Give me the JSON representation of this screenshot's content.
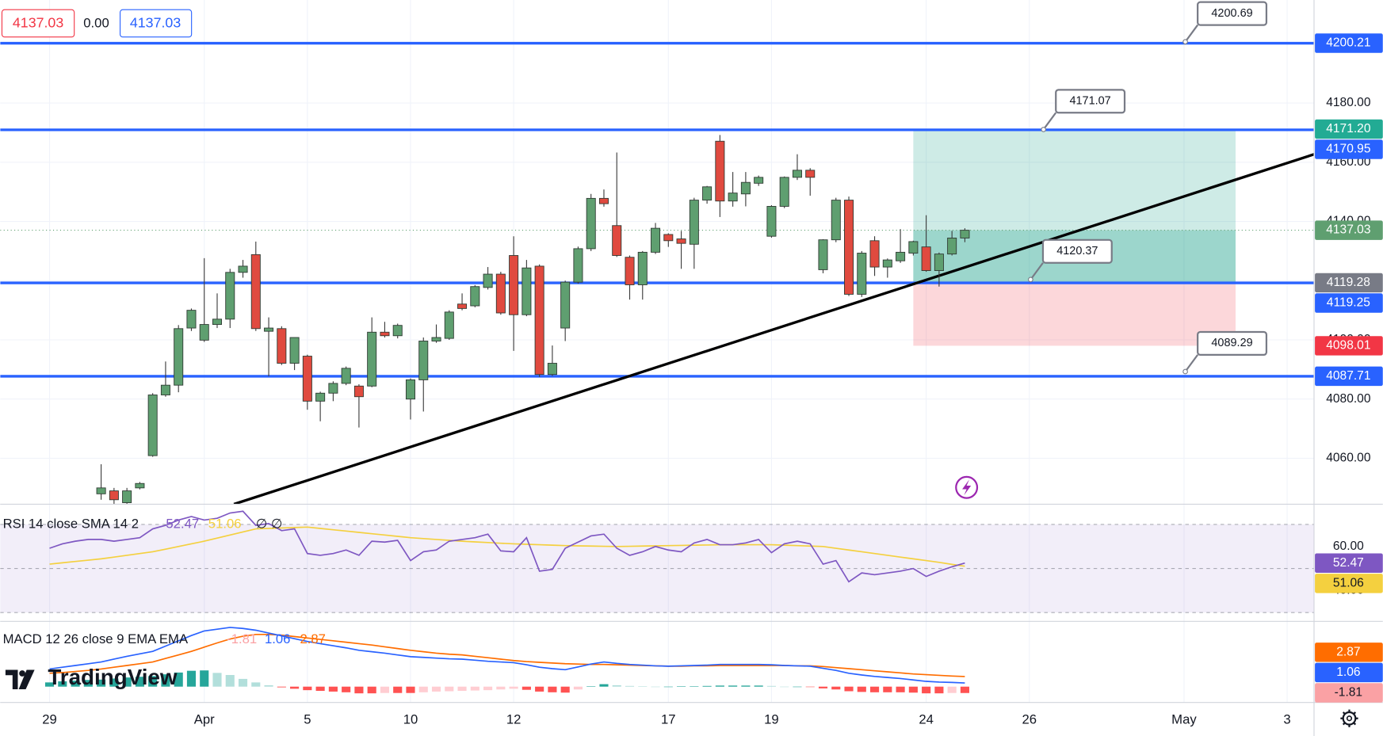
{
  "header": {
    "bid": 4137.03,
    "spread": {
      "value": 0,
      "label": "0.00"
    },
    "ask": 4137.03
  },
  "logo": "TradingView",
  "chart_data": {
    "type": "candlestick",
    "categories": [
      "29",
      null,
      null,
      null,
      null,
      null,
      null,
      null,
      null,
      null,
      null,
      null,
      "Apr",
      null,
      null,
      null,
      null,
      null,
      null,
      null,
      "5",
      null,
      null,
      null,
      null,
      null,
      null,
      null,
      "10",
      null,
      null,
      null,
      null,
      null,
      null,
      null,
      "12",
      null,
      null,
      null,
      null,
      null,
      null,
      null,
      null,
      null,
      null,
      null,
      "17",
      null,
      null,
      null,
      null,
      null,
      null,
      null,
      "19",
      null,
      null,
      null,
      null,
      null,
      null,
      null,
      null,
      null,
      null,
      null,
      "24",
      null,
      null,
      null,
      null,
      null,
      null,
      null,
      "26",
      null,
      null,
      null,
      null,
      null,
      null,
      null,
      null,
      null,
      null,
      null,
      "May",
      null,
      null,
      null,
      null,
      null,
      null,
      null,
      "3"
    ],
    "open": [
      null,
      null,
      null,
      null,
      4048,
      4049,
      4045,
      4050,
      4060.9,
      4081.4,
      4084.7,
      4104,
      4099.9,
      4105.2,
      4107,
      4122.8,
      4128.8,
      4102.9,
      4103.8,
      4092.1,
      4094.5,
      4079.3,
      4082,
      4085.3,
      4084.4,
      4084.4,
      4102.6,
      4101.4,
      4080,
      4086.5,
      4099.6,
      4100.5,
      4112.1,
      4111.5,
      4117.7,
      4122.2,
      4128.5,
      4108.5,
      4124.9,
      4088.3,
      4104,
      4119.5,
      4130.8,
      4147.8,
      4138.6,
      4127.9,
      4118.6,
      4129.6,
      4135.6,
      4134.1,
      4132.3,
      4147.2,
      4167.1,
      4146.9,
      4149.3,
      4152.9,
      4135,
      4145.1,
      4154.9,
      4157.3,
      4123.7,
      4133.8,
      4147.2,
      4115.4,
      4133.5,
      4124.6,
      4126.7,
      4129.3,
      4131.4,
      4123.4,
      4129,
      4134.4,
      null,
      null,
      null,
      null,
      null,
      null,
      null,
      null,
      null,
      null,
      null,
      null,
      null,
      null,
      null,
      null,
      null,
      null,
      null,
      null,
      null,
      null,
      null,
      null,
      null
    ],
    "high": [
      null,
      null,
      null,
      null,
      4058,
      4050,
      4050,
      4052,
      4082,
      4092.7,
      4105,
      4110.6,
      4127.6,
      4115.7,
      4124,
      4127,
      4133.2,
      4107.6,
      4104.6,
      4100.8,
      4095,
      4082.5,
      4086,
      4091,
      4085,
      4107.6,
      4106.1,
      4105.5,
      4087,
      4100.8,
      4105.2,
      4110,
      4115.7,
      4118.5,
      4124.6,
      4123,
      4135,
      4127,
      4125.5,
      4098.1,
      4120,
      4131.5,
      4149.3,
      4150.8,
      4163.3,
      4128.5,
      4130,
      4139.5,
      4136,
      4136.8,
      4148,
      4152,
      4169.2,
      4156.7,
      4156.7,
      4155.5,
      4145.5,
      4155.2,
      4162.7,
      4158,
      4134,
      4148,
      4148.4,
      4130,
      4135,
      4127.5,
      4137.4,
      4133.5,
      4142.1,
      4129.5,
      4136.8,
      4137.7,
      null,
      null,
      null,
      null,
      null,
      null,
      null,
      null,
      null,
      null,
      null,
      null,
      null,
      null,
      null,
      null,
      null,
      null,
      null,
      null,
      null,
      null,
      null,
      null,
      null
    ],
    "low": [
      null,
      null,
      null,
      null,
      4046,
      4044.6,
      4044,
      4049.5,
      4060.5,
      4080.8,
      4082.3,
      4103,
      4099.3,
      4104,
      4104,
      4121,
      4103,
      4087.7,
      4091.5,
      4089.8,
      4076.4,
      4072.5,
      4079.3,
      4084.7,
      4070.4,
      4084,
      4100.8,
      4100.5,
      4073.1,
      4075.8,
      4099,
      4100,
      4110,
      4111,
      4117,
      4108.5,
      4096.3,
      4108,
      4087.5,
      4087.8,
      4099.6,
      4119,
      4130,
      4145,
      4128,
      4113.6,
      4113.6,
      4129,
      4131.4,
      4124,
      4124,
      4146,
      4141.5,
      4145,
      4145.1,
      4152,
      4134.5,
      4144.5,
      4154,
      4148.7,
      4122.5,
      4133,
      4114.8,
      4114.5,
      4121.6,
      4121,
      4126,
      4128.5,
      4123,
      4118,
      4128.5,
      4133,
      null,
      null,
      null,
      null,
      null,
      null,
      null,
      null,
      null,
      null,
      null,
      null,
      null,
      null,
      null,
      null,
      null,
      null,
      null,
      null,
      null,
      null,
      null,
      null,
      null
    ],
    "close": [
      null,
      null,
      null,
      null,
      4050,
      4046,
      4049,
      4051.5,
      4081.4,
      4084.7,
      4103.8,
      4110,
      4105.2,
      4107,
      4122.8,
      4124.9,
      4103.8,
      4104,
      4092.1,
      4100.8,
      4079.3,
      4082,
      4085.3,
      4090.4,
      4080.8,
      4102.6,
      4101.4,
      4104.9,
      4086.5,
      4099.6,
      4100.8,
      4109.4,
      4110.6,
      4118,
      4122.2,
      4109.1,
      4108.5,
      4124.3,
      4088.3,
      4092.1,
      4119.5,
      4130.8,
      4147.8,
      4146,
      4128.5,
      4118.6,
      4129.6,
      4137.7,
      4133.5,
      4132.6,
      4147.2,
      4151.7,
      4146.9,
      4149.6,
      4153.2,
      4154.9,
      4145.1,
      4154.9,
      4157.3,
      4154.9,
      4133.8,
      4147.2,
      4115.4,
      4129.3,
      4124.6,
      4127,
      4129.6,
      4133.2,
      4123.4,
      4129,
      4134.4,
      4137.03,
      null,
      null,
      null,
      null,
      null,
      null,
      null,
      null,
      null,
      null,
      null,
      null,
      null,
      null,
      null,
      null,
      null,
      null,
      null,
      null,
      null,
      null,
      null,
      null,
      null
    ],
    "up_color": "#5f9f70",
    "down_color": "#e04a3f",
    "ylim": [
      4044.5,
      4214.8
    ],
    "yticks": [
      {
        "value": 4060,
        "label": "4060.00"
      },
      {
        "value": 4080,
        "label": "4080.00"
      },
      {
        "value": 4100,
        "label": "4100.00"
      },
      {
        "value": 4120,
        "label": "4120.00"
      },
      {
        "value": 4140,
        "label": "4140.00"
      },
      {
        "value": 4160,
        "label": "4160.00"
      },
      {
        "value": 4180,
        "label": "4180.00"
      },
      {
        "value": 4200,
        "label": "4200.00"
      }
    ],
    "grid": true,
    "hlines": {
      "color": "#2962ff",
      "values": [
        4200.21,
        4170.95,
        4119.25,
        4087.71
      ]
    },
    "callouts": [
      {
        "value": 4200.69,
        "x": 88.1
      },
      {
        "value": 4171.07,
        "x": 77.1
      },
      {
        "value": 4120.37,
        "x": 76.1
      },
      {
        "value": 4089.29,
        "x": 88.1
      }
    ],
    "trendline": {
      "color": "#000000",
      "points": [
        {
          "x": 14.3,
          "y": 4044.5
        },
        {
          "x": 98.1,
          "y": 4162.7
        }
      ]
    },
    "position": {
      "start": 67,
      "end": 92,
      "target": {
        "value": 4171.2,
        "label": "4171.20"
      },
      "entry": 4119.28,
      "stop": 4098.01,
      "target_color": "#22ab94",
      "entry_color": "#787b86",
      "stop_color": "#f23645"
    },
    "rsi": {
      "legend": "RSI 14 close SMA 14 2",
      "extra": "∅ ∅",
      "ylim": [
        26,
        79.2
      ],
      "yticks": [
        {
          "value": 40,
          "label": "40.00"
        },
        {
          "value": 60,
          "label": "60.00"
        }
      ],
      "bands": [
        70,
        50,
        30
      ],
      "line": {
        "color": "#7e57c2",
        "values": [
          59.2,
          61.2,
          62.4,
          63.2,
          63.2,
          62.4,
          63.2,
          64,
          68,
          69.6,
          72,
          73.6,
          72,
          72.8,
          75.2,
          76,
          69.6,
          70.4,
          67.2,
          68,
          56.8,
          56,
          56.8,
          58.4,
          56,
          62.4,
          62,
          62.8,
          53.6,
          57.6,
          58.4,
          62.4,
          63.2,
          64,
          65.6,
          58,
          57.6,
          64,
          48.8,
          49.6,
          59.2,
          62,
          64.8,
          65.6,
          59.2,
          56,
          57.6,
          60,
          58.4,
          57.6,
          61.6,
          63.2,
          60.8,
          60.8,
          61.6,
          63.2,
          57.2,
          61.2,
          62.4,
          61.2,
          52,
          53.6,
          44,
          48,
          47.2,
          48,
          48.8,
          50,
          46.4,
          48.8,
          50.8,
          52.47,
          null,
          null,
          null,
          null,
          null,
          null,
          null,
          null,
          null,
          null,
          null,
          null,
          null,
          null,
          null,
          null,
          null,
          null,
          null,
          null,
          null,
          null,
          null,
          null,
          null
        ]
      },
      "sma": {
        "color": "#f4d03f",
        "values": [
          52,
          52.6,
          53.2,
          53.8,
          54.4,
          55.2,
          56,
          56.8,
          57.6,
          58.8,
          60,
          61.2,
          62.4,
          63.8,
          65.2,
          66.6,
          68,
          68.2,
          68.4,
          68.6,
          68.8,
          68.2,
          67.6,
          67,
          66.4,
          65.8,
          65.2,
          64.6,
          64,
          63.6,
          63.2,
          62.8,
          62.4,
          62.1,
          61.8,
          61.5,
          61.2,
          61,
          60.8,
          60.6,
          60.4,
          60.3,
          60.2,
          60.1,
          60,
          60.1,
          60.2,
          60.3,
          60.4,
          60.5,
          60.6,
          60.7,
          60.8,
          60.8,
          60.8,
          60.8,
          60.8,
          60.6,
          60.4,
          60.2,
          60,
          59.2,
          58.4,
          57.6,
          56.8,
          56,
          55.2,
          54.4,
          53.6,
          52.8,
          51.9,
          51.06,
          null,
          null,
          null,
          null,
          null,
          null,
          null,
          null,
          null,
          null,
          null,
          null,
          null,
          null,
          null,
          null,
          null,
          null,
          null,
          null,
          null,
          null,
          null,
          null,
          null
        ]
      }
    },
    "macd": {
      "legend": "MACD 12 26 close 9 EMA EMA",
      "ylim": [
        -4.5,
        18.5
      ],
      "macd": {
        "color": "#2962ff",
        "values": [
          5,
          5.5,
          6,
          6.5,
          7,
          7.8,
          8.6,
          9.3,
          10,
          11.5,
          13,
          14.5,
          15.8,
          16.3,
          16.8,
          16.5,
          16,
          15.2,
          14.4,
          13.6,
          12.8,
          12.2,
          11.6,
          11,
          10.3,
          9.9,
          9.5,
          9,
          8.5,
          8.3,
          8.1,
          7.9,
          7.8,
          7.5,
          7.2,
          7,
          6.8,
          6.2,
          5.5,
          5.1,
          4.8,
          5.6,
          6.4,
          7,
          6.6,
          6.3,
          6.1,
          5.9,
          5.8,
          5.9,
          6,
          6.1,
          6.3,
          6.3,
          6.3,
          6.3,
          6.2,
          6,
          5.9,
          5.8,
          5.2,
          4.6,
          3.8,
          3.3,
          2.9,
          2.6,
          2.3,
          1.9,
          1.5,
          1.3,
          1.2,
          1.06,
          null,
          null,
          null,
          null,
          null,
          null,
          null,
          null,
          null,
          null,
          null,
          null,
          null,
          null,
          null,
          null,
          null,
          null,
          null,
          null,
          null,
          null,
          null,
          null,
          null
        ]
      },
      "signal": {
        "color": "#ff6d00",
        "values": [
          3.8,
          4,
          4.3,
          4.6,
          5,
          5.5,
          6,
          6.5,
          7,
          8,
          9,
          10,
          11.2,
          12.4,
          13.5,
          14.3,
          14.8,
          14.8,
          14.6,
          14.2,
          13.8,
          13.4,
          13,
          12.6,
          12.2,
          11.8,
          11.3,
          10.8,
          10.3,
          9.9,
          9.5,
          9.2,
          9,
          8.6,
          8.2,
          7.8,
          7.4,
          7.1,
          6.9,
          6.7,
          6.5,
          6.4,
          6.3,
          6.3,
          6.2,
          6.1,
          6,
          5.9,
          5.8,
          5.8,
          5.9,
          5.9,
          6,
          6,
          6,
          6,
          6,
          6,
          5.9,
          5.9,
          5.7,
          5.4,
          5.1,
          4.8,
          4.5,
          4.2,
          3.9,
          3.6,
          3.4,
          3.2,
          3,
          2.87,
          null,
          null,
          null,
          null,
          null,
          null,
          null,
          null,
          null,
          null,
          null,
          null,
          null,
          null,
          null,
          null,
          null,
          null,
          null,
          null,
          null,
          null,
          null,
          null,
          null
        ]
      },
      "histogram": {
        "colors": {
          "grow_up": "#26a69a",
          "fall_up": "#b2dfdb",
          "grow_down": "#ff5252",
          "fall_down": "#ffcdd2"
        },
        "label_color": "#faa1a4",
        "values": [
          1.2,
          1.5,
          1.7,
          1.9,
          2,
          2.3,
          2.6,
          2.8,
          3,
          3.5,
          4,
          4.5,
          4.6,
          3.9,
          3.3,
          2.2,
          1.2,
          0.4,
          -0.2,
          -0.6,
          -1,
          -1.2,
          -1.4,
          -1.6,
          -1.9,
          -1.9,
          -1.8,
          -1.8,
          -1.8,
          -1.6,
          -1.4,
          -1.3,
          -1.2,
          -1.1,
          -1,
          -0.8,
          -0.6,
          -0.9,
          -1.4,
          -1.6,
          -1.7,
          -0.8,
          0.1,
          0.7,
          0.4,
          0.2,
          0.1,
          0,
          0,
          0.1,
          0.1,
          0.2,
          0.3,
          0.3,
          0.3,
          0.3,
          0.2,
          0,
          0,
          -0.1,
          -0.5,
          -0.8,
          -1.3,
          -1.5,
          -1.6,
          -1.6,
          -1.6,
          -1.7,
          -1.9,
          -1.9,
          -1.8,
          -1.81,
          null,
          null,
          null,
          null,
          null,
          null,
          null,
          null,
          null,
          null,
          null,
          null,
          null,
          null,
          null,
          null,
          null,
          null,
          null,
          null,
          null,
          null,
          null,
          null,
          null
        ]
      }
    }
  }
}
